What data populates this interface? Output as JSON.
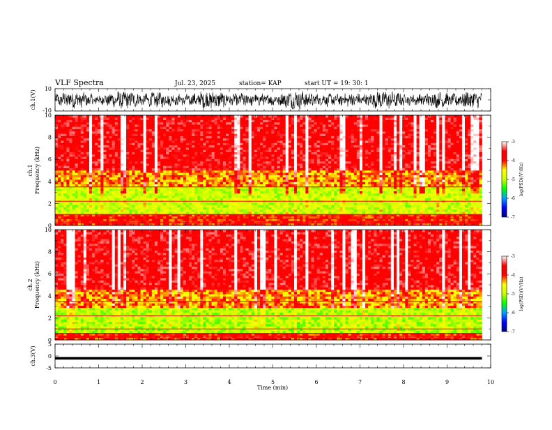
{
  "header": {
    "title": "VLF Spectra",
    "date": "Jul. 23, 2025",
    "station": "station= KAP",
    "start_ut": "start  UT =   19: 30: 1"
  },
  "chart_data": [
    {
      "type": "line",
      "name": "ch1-waveform",
      "ylabel": "ch.1(V)",
      "ylim": [
        -10,
        10
      ],
      "yticks": [
        "10",
        "-10"
      ],
      "xlim": [
        0,
        10
      ],
      "data_extent_min": [
        0,
        9.8
      ],
      "description_values": {
        "typical_range": [
          -8,
          8
        ]
      }
    },
    {
      "type": "heatmap",
      "name": "ch1-spectrogram",
      "ylabel_line1": "ch.1",
      "ylabel_line2": "Frequency  (kHz)",
      "ylim": [
        0,
        10
      ],
      "yticks": [
        "0",
        "2",
        "4",
        "6",
        "8",
        "10"
      ],
      "xlim": [
        0,
        10
      ],
      "data_extent_min": [
        0,
        9.8
      ],
      "band_profile_khz": [
        {
          "f": [
            0.0,
            1.0
          ],
          "level": -4.0
        },
        {
          "f": [
            1.0,
            3.6
          ],
          "level": -4.9
        },
        {
          "f": [
            3.6,
            5.0
          ],
          "level": -4.3
        },
        {
          "f": [
            5.0,
            10.0
          ],
          "level": -3.6
        }
      ]
    },
    {
      "type": "heatmap",
      "name": "ch2-spectrogram",
      "ylabel_line1": "ch.2",
      "ylabel_line2": "Frequency  (kHz)",
      "ylim": [
        0,
        10
      ],
      "yticks": [
        "0",
        "2",
        "4",
        "6",
        "8",
        "10"
      ],
      "xlim": [
        0,
        10
      ],
      "data_extent_min": [
        0,
        9.8
      ],
      "band_profile_khz": [
        {
          "f": [
            0.0,
            0.7
          ],
          "level": -4.0
        },
        {
          "f": [
            0.7,
            3.0
          ],
          "level": -5.0
        },
        {
          "f": [
            3.0,
            4.5
          ],
          "level": -4.3
        },
        {
          "f": [
            4.5,
            10.0
          ],
          "level": -3.6
        }
      ]
    },
    {
      "type": "line",
      "name": "ch3-waveform",
      "ylabel": "ch.3(V)",
      "ylim": [
        -5,
        5
      ],
      "yticks": [
        "5",
        "0",
        "-5"
      ],
      "xlim": [
        0,
        10
      ],
      "data_extent_min": [
        0,
        9.8
      ],
      "description_values": {
        "level": -1,
        "band": [
          -1.5,
          -0.4
        ]
      }
    }
  ],
  "colorbar": {
    "label": "log(PSD)(V²/Hz)",
    "ticks": [
      "-3",
      "-4",
      "-5",
      "-6",
      "-7"
    ],
    "range": [
      -7,
      -3
    ],
    "colors": [
      "#000080",
      "#0000ff",
      "#00a0ff",
      "#00ff00",
      "#c8ff00",
      "#ffff00",
      "#ff0000",
      "#ff0000",
      "#ffffff"
    ]
  },
  "xaxis": {
    "label": "Time  (min)",
    "ticks": [
      "0",
      "1",
      "2",
      "3",
      "4",
      "5",
      "6",
      "7",
      "8",
      "9",
      "10"
    ]
  }
}
